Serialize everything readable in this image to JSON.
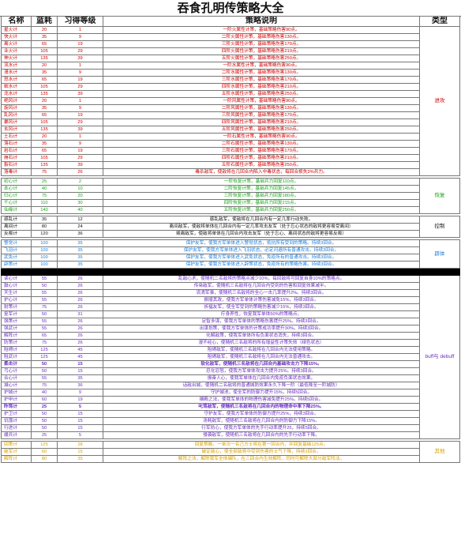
{
  "title": "吞食孔明传策略大全",
  "headers": [
    "名称",
    "蓝耗",
    "习得等级",
    "策略说明",
    "类型"
  ],
  "groups": [
    {
      "type": "进攻",
      "color": "#d40000",
      "rows": [
        {
          "name": "星火计",
          "cost": "20",
          "level": "1",
          "desc": "一阶火属性计策，基础策略伤害90点。"
        },
        {
          "name": "快火计",
          "cost": "35",
          "level": "9",
          "desc": "二阶火属性计策，基础策略伤害130点。"
        },
        {
          "name": "离火计",
          "cost": "65",
          "level": "19",
          "desc": "三阶火属性计策，基础策略伤害170点。"
        },
        {
          "name": "业火计",
          "cost": "105",
          "level": "29",
          "desc": "四阶火属性计策，基础策略伤害210点。"
        },
        {
          "name": "神火计",
          "cost": "135",
          "level": "39",
          "desc": "五阶火属性计策，基础策略伤害250点。"
        },
        {
          "name": "流水计",
          "cost": "20",
          "level": "1",
          "desc": "一阶水属性计策，基础策略伤害90点。"
        },
        {
          "name": "漫水计",
          "cost": "35",
          "level": "9",
          "desc": "二阶水属性计策，基础策略伤害130点。"
        },
        {
          "name": "怒水计",
          "cost": "65",
          "level": "19",
          "desc": "三阶水属性计策，基础策略伤害170点。"
        },
        {
          "name": "蛟水计",
          "cost": "105",
          "level": "29",
          "desc": "四阶水属性计策，基础策略伤害210点。"
        },
        {
          "name": "龙水计",
          "cost": "135",
          "level": "39",
          "desc": "五阶水属性计策，基础策略伤害250点。"
        },
        {
          "name": "绝风计",
          "cost": "20",
          "level": "1",
          "desc": "一阶风属性计策，基础策略伤害90点。"
        },
        {
          "name": "旋风计",
          "cost": "35",
          "level": "9",
          "desc": "二阶风属性计策，基础策略伤害130点。"
        },
        {
          "name": "乱风计",
          "cost": "65",
          "level": "19",
          "desc": "三阶风属性计策，基础策略伤害170点。"
        },
        {
          "name": "暴风计",
          "cost": "105",
          "level": "29",
          "desc": "四阶风属性计策，基础策略伤害210点。"
        },
        {
          "name": "玄风计",
          "cost": "135",
          "level": "39",
          "desc": "五阶风属性计策，基础策略伤害250点。"
        },
        {
          "name": "土石计",
          "cost": "20",
          "level": "1",
          "desc": "一阶石属性计策，基础策略伤害90点。"
        },
        {
          "name": "落石计",
          "cost": "35",
          "level": "9",
          "desc": "二阶石属性计策，基础策略伤害130点。"
        },
        {
          "name": "岩石计",
          "cost": "65",
          "level": "19",
          "desc": "三阶石属性计策，基础策略伤害170点。"
        },
        {
          "name": "崩石计",
          "cost": "105",
          "level": "29",
          "desc": "四阶石属性计策，基础策略伤害210点。"
        },
        {
          "name": "裂石计",
          "cost": "135",
          "level": "39",
          "desc": "五阶石属性计策，基础策略伤害250点。"
        },
        {
          "name": "落毒计",
          "cost": "75",
          "level": "26",
          "desc": "毒杀敌军，使敌将在几回合内陷入中毒状态，每回合损失3%兵力。"
        }
      ]
    },
    {
      "type": "恢复",
      "color": "#1aa61a",
      "rows": [
        {
          "name": "初心计",
          "cost": "25",
          "level": "2",
          "desc": "一阶恢复计策，基础兵力回复110点。"
        },
        {
          "name": "本心计",
          "cost": "40",
          "level": "10",
          "desc": "二阶恢复计策，基础兵力回复145点。"
        },
        {
          "name": "归心计",
          "cost": "75",
          "level": "20",
          "desc": "三阶恢复计策，基础兵力回复180点。"
        },
        {
          "name": "千心计",
          "cost": "110",
          "level": "30",
          "desc": "四阶恢复计策，基础兵力回复215点。"
        },
        {
          "name": "仙缘计",
          "cost": "140",
          "level": "40",
          "desc": "五阶恢复计策，基础兵力回复250点。"
        }
      ]
    },
    {
      "type": "控制",
      "color": "#111111",
      "rows": [
        {
          "name": "惑乱计",
          "cost": "35",
          "level": "12",
          "desc": "惑乱敌军，使敌将在几回合内有一定几率行动失败。"
        },
        {
          "name": "离间计",
          "cost": "80",
          "level": "24",
          "desc": "离间敌军，使敌将单体在几回合内有一定几率攻击友军（处于忘心状态的敌将更容易受离间）"
        },
        {
          "name": "反叛计",
          "cost": "120",
          "level": "36",
          "desc": "叛离敌军，使敌将单体在几回合内攻击友军（处于忘心、离间状态的敌将更容易反叛）"
        }
      ]
    },
    {
      "type": "辟体",
      "color": "#1a7fe0",
      "rows": [
        {
          "name": "警觉计",
          "cost": "100",
          "level": "35",
          "desc": "保护友军，使我方军单体进入警觉状态，抵抗所有受到的策略。持续3回合。"
        },
        {
          "name": "飞羽计",
          "cost": "100",
          "level": "35",
          "desc": "保护友军，使我方军单体进入飞羽状态，必定闪避所有普通攻击。持续3回合。"
        },
        {
          "name": "武免计",
          "cost": "100",
          "level": "35",
          "desc": "保护友军，使我方军单体进入武免状态，免疫所有的普通攻击。持续3回合。"
        },
        {
          "name": "辟策计",
          "cost": "100",
          "level": "35",
          "desc": "保护友军，使我方军单体进入辟策状态，免疫所有的策略伤害。持续3回合。"
        }
      ]
    },
    {
      "type": "buff与\ndebuff",
      "color": "#6a2fc4",
      "rows": [
        {
          "name": "读心计",
          "cost": "55",
          "level": "26",
          "desc": "乱敌心术，使随机二名敌将的策略点减少10%，每回敌将可回复自身10%的策略点。"
        },
        {
          "name": "鼓心计",
          "cost": "50",
          "level": "26",
          "desc": "传染敌军，使随机三名敌将在几回合内受到的伤害和回复效果减半。"
        },
        {
          "name": "天生计",
          "cost": "55",
          "level": "26",
          "desc": "流滴军事，使随机三名敌将的全心一击几率提升2%。持续3回合。"
        },
        {
          "name": "护心计",
          "cost": "55",
          "level": "26",
          "desc": "振顺其政，使我方军单体计策伤害减免15%，持续3回合。"
        },
        {
          "name": "耐策计",
          "cost": "75",
          "level": "26",
          "desc": "祈福友军，使全军受到的策略伤害减少15%，持续3回合。"
        },
        {
          "name": "复军计",
          "cost": "50",
          "level": "31",
          "desc": "疗身养性，恢复我军单体50%的策略点。"
        },
        {
          "name": "强策计",
          "cost": "55",
          "level": "26",
          "desc": "足智多谋，使我方军单体的策略伤害提升25%。持续3回合。"
        },
        {
          "name": "强武计",
          "cost": "55",
          "level": "26",
          "desc": "出谋划策，使我方军单体的计策成功率提升30%。持续3回合。"
        },
        {
          "name": "解阵计",
          "cost": "65",
          "level": "26",
          "desc": "化解敌策，使我军单体所有负面状态消失，持续3回合。"
        },
        {
          "name": "防策计",
          "cost": "75",
          "level": "26",
          "desc": "漫不经心，使随机三名敌将的所有增益性计策失效（绿色状态）"
        },
        {
          "name": "阻碍计",
          "cost": "125",
          "level": "45",
          "desc": "阻碍敌军，使随机三名敌将在几回合内无法使用策略。"
        },
        {
          "name": "阻武计",
          "cost": "125",
          "level": "45",
          "desc": "阻碍敌军，使随机三名敌将在几回合内无法普通攻击。"
        },
        {
          "name": "柔击计",
          "cost": "50",
          "level": "15",
          "desc": "软化敌军，使随机三名敌将在几回合内基础攻击力下降15%。"
        },
        {
          "name": "弓心计",
          "cost": "50",
          "level": "15",
          "desc": "忍化忍怒，使我方军单体攻击力提升25%。持续3回合。"
        },
        {
          "name": "合心计",
          "cost": "55",
          "level": "35",
          "desc": "振奋人心，使我军单体在几回合内免疫负面状态效果。"
        },
        {
          "name": "城心计",
          "cost": "75",
          "level": "36",
          "desc": "话敌出城，使随机二名敌将的普通城防效果永久下降一阶（最低降至一阶城防）"
        },
        {
          "name": "护城计",
          "cost": "40",
          "level": "9",
          "desc": "守护城池，使全军的防御力提升15%，持续5回合。"
        },
        {
          "name": "护甲计",
          "cost": "60",
          "level": "19",
          "desc": "攘殿之法，使我军单体的物理伤害减免提升25%。持续5回合。"
        },
        {
          "name": "昨骂计",
          "cost": "25",
          "level": "5",
          "desc": "叱骂敌军，使随机三名敌将在几回合内的物理命中率下降25%。"
        },
        {
          "name": "护卫计",
          "cost": "50",
          "level": "15",
          "desc": "守护友军，使我方军单体的防御力提升25%，持续3回合。"
        },
        {
          "name": "饥饿计",
          "cost": "50",
          "level": "15",
          "desc": "汤耗敌军，使随机三名敌将在几回合内的防御力下降15%。"
        },
        {
          "name": "行进计",
          "cost": "50",
          "level": "15",
          "desc": "行军劝心，使我方军单体的先手行动率提升25，持续5回合。"
        },
        {
          "name": "缓兵计",
          "cost": "25",
          "level": "5",
          "desc": "侵袭敌军，使随机三名敌将在几回合内的先手行动率下降。"
        }
      ]
    },
    {
      "type": "其他",
      "color": "#d6a100",
      "rows": [
        {
          "name": "回策计",
          "cost": "125",
          "level": "28",
          "desc": "回复策略，一单次一名己方士将在第一回合内，并回复基础125点。"
        },
        {
          "name": "破军计",
          "cost": "60",
          "level": "15",
          "desc": "破定敌心，使全部敌将中受到伤害的士气下降，持续3回合。"
        },
        {
          "name": "解阵计",
          "cost": "80",
          "level": "35",
          "desc": "解阵之法，解除我军全体编队，在三回合内生效解阵，同时可解除大部分敌军阵法。"
        }
      ]
    }
  ]
}
